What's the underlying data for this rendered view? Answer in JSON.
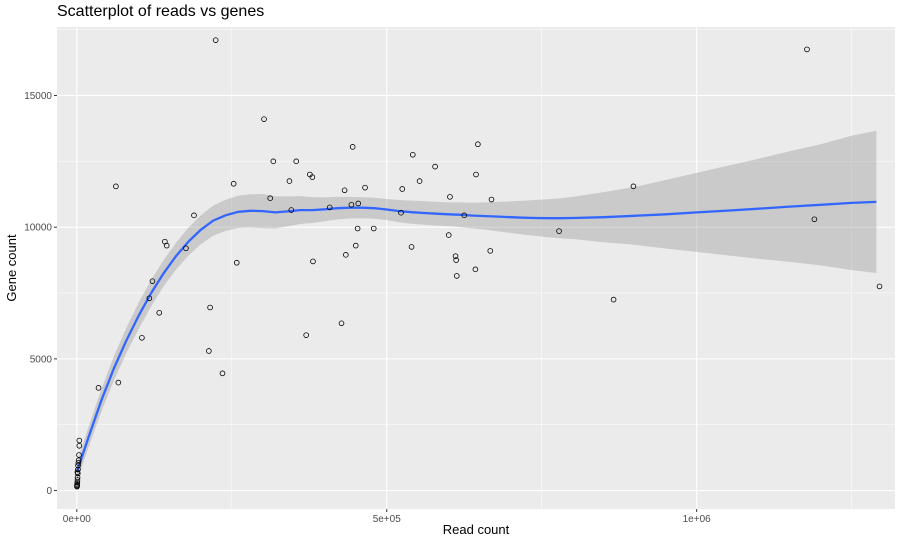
{
  "chart_data": {
    "type": "scatter",
    "title": "Scatterplot of reads vs genes",
    "xlabel": "Read count",
    "ylabel": "Gene count",
    "xlim": [
      -32000,
      1320000
    ],
    "ylim": [
      -700,
      17600
    ],
    "x_ticks": [
      {
        "value": 0,
        "label": "0e+00"
      },
      {
        "value": 500000,
        "label": "5e+05"
      },
      {
        "value": 1000000,
        "label": "1e+06"
      }
    ],
    "y_ticks": [
      {
        "value": 0,
        "label": "0"
      },
      {
        "value": 5000,
        "label": "5000"
      },
      {
        "value": 10000,
        "label": "10000"
      },
      {
        "value": 15000,
        "label": "15000"
      }
    ],
    "grid": true,
    "colors": {
      "panel": "#ebebeb",
      "grid_major": "#ffffff",
      "points": "#000000",
      "smooth_line": "#3366ff",
      "confidence_band": "#999999"
    },
    "points": [
      [
        200,
        150
      ],
      [
        300,
        200
      ],
      [
        500,
        250
      ],
      [
        800,
        300
      ],
      [
        1000,
        400
      ],
      [
        1200,
        500
      ],
      [
        1500,
        650
      ],
      [
        1800,
        800
      ],
      [
        2000,
        950
      ],
      [
        2500,
        1050
      ],
      [
        3000,
        1150
      ],
      [
        3500,
        1350
      ],
      [
        4000,
        1700
      ],
      [
        4000,
        1900
      ],
      [
        600,
        180
      ],
      [
        900,
        700
      ],
      [
        35000,
        3900
      ],
      [
        63000,
        11550
      ],
      [
        67000,
        4100
      ],
      [
        105000,
        5800
      ],
      [
        117000,
        7300
      ],
      [
        122000,
        7950
      ],
      [
        133000,
        6750
      ],
      [
        142000,
        9450
      ],
      [
        145000,
        9300
      ],
      [
        176000,
        9200
      ],
      [
        189000,
        10450
      ],
      [
        213000,
        5300
      ],
      [
        215000,
        6950
      ],
      [
        224000,
        17100
      ],
      [
        235000,
        4450
      ],
      [
        253000,
        11650
      ],
      [
        258000,
        8650
      ],
      [
        302000,
        14100
      ],
      [
        312000,
        11100
      ],
      [
        317000,
        12500
      ],
      [
        343000,
        11750
      ],
      [
        346000,
        10650
      ],
      [
        354000,
        12500
      ],
      [
        370000,
        5900
      ],
      [
        376000,
        12000
      ],
      [
        380000,
        11900
      ],
      [
        381000,
        8700
      ],
      [
        408000,
        10750
      ],
      [
        427000,
        6350
      ],
      [
        432000,
        11400
      ],
      [
        434000,
        8950
      ],
      [
        443000,
        10850
      ],
      [
        445000,
        13050
      ],
      [
        450000,
        9300
      ],
      [
        453000,
        9950
      ],
      [
        454000,
        10900
      ],
      [
        465000,
        11500
      ],
      [
        479000,
        9950
      ],
      [
        523000,
        10550
      ],
      [
        525000,
        11450
      ],
      [
        540000,
        9250
      ],
      [
        542000,
        12750
      ],
      [
        553000,
        11750
      ],
      [
        578000,
        12300
      ],
      [
        600000,
        9700
      ],
      [
        602000,
        11150
      ],
      [
        611000,
        8900
      ],
      [
        612000,
        8750
      ],
      [
        613000,
        8150
      ],
      [
        625000,
        10450
      ],
      [
        643000,
        8400
      ],
      [
        644000,
        12000
      ],
      [
        647000,
        13150
      ],
      [
        667000,
        9100
      ],
      [
        669000,
        11050
      ],
      [
        778000,
        9850
      ],
      [
        866000,
        7250
      ],
      [
        898000,
        11550
      ],
      [
        1178000,
        16750
      ],
      [
        1190000,
        10300
      ],
      [
        1295000,
        7750
      ]
    ],
    "smooth": [
      [
        0,
        700
      ],
      [
        20000,
        2100
      ],
      [
        40000,
        3450
      ],
      [
        60000,
        4650
      ],
      [
        80000,
        5700
      ],
      [
        100000,
        6650
      ],
      [
        120000,
        7500
      ],
      [
        140000,
        8250
      ],
      [
        160000,
        8900
      ],
      [
        180000,
        9450
      ],
      [
        200000,
        9900
      ],
      [
        220000,
        10250
      ],
      [
        240000,
        10450
      ],
      [
        260000,
        10580
      ],
      [
        280000,
        10620
      ],
      [
        300000,
        10610
      ],
      [
        320000,
        10560
      ],
      [
        340000,
        10600
      ],
      [
        360000,
        10650
      ],
      [
        380000,
        10650
      ],
      [
        400000,
        10680
      ],
      [
        420000,
        10720
      ],
      [
        440000,
        10740
      ],
      [
        460000,
        10740
      ],
      [
        480000,
        10720
      ],
      [
        500000,
        10670
      ],
      [
        520000,
        10610
      ],
      [
        540000,
        10570
      ],
      [
        560000,
        10540
      ],
      [
        580000,
        10510
      ],
      [
        600000,
        10490
      ],
      [
        620000,
        10470
      ],
      [
        640000,
        10440
      ],
      [
        660000,
        10420
      ],
      [
        680000,
        10400
      ],
      [
        700000,
        10380
      ],
      [
        720000,
        10360
      ],
      [
        740000,
        10350
      ],
      [
        760000,
        10340
      ],
      [
        780000,
        10340
      ],
      [
        800000,
        10350
      ],
      [
        850000,
        10380
      ],
      [
        900000,
        10430
      ],
      [
        950000,
        10490
      ],
      [
        1000000,
        10560
      ],
      [
        1050000,
        10630
      ],
      [
        1100000,
        10700
      ],
      [
        1150000,
        10780
      ],
      [
        1200000,
        10850
      ],
      [
        1250000,
        10920
      ],
      [
        1290000,
        10960
      ]
    ],
    "band_width": [
      [
        0,
        350
      ],
      [
        50000,
        450
      ],
      [
        100000,
        500
      ],
      [
        150000,
        500
      ],
      [
        200000,
        550
      ],
      [
        250000,
        600
      ],
      [
        300000,
        650
      ],
      [
        350000,
        550
      ],
      [
        400000,
        450
      ],
      [
        450000,
        400
      ],
      [
        500000,
        400
      ],
      [
        550000,
        450
      ],
      [
        600000,
        450
      ],
      [
        650000,
        500
      ],
      [
        700000,
        600
      ],
      [
        750000,
        700
      ],
      [
        800000,
        800
      ],
      [
        850000,
        950
      ],
      [
        900000,
        1100
      ],
      [
        950000,
        1300
      ],
      [
        1000000,
        1500
      ],
      [
        1050000,
        1700
      ],
      [
        1100000,
        1900
      ],
      [
        1150000,
        2100
      ],
      [
        1200000,
        2300
      ],
      [
        1250000,
        2550
      ],
      [
        1290000,
        2700
      ]
    ]
  }
}
